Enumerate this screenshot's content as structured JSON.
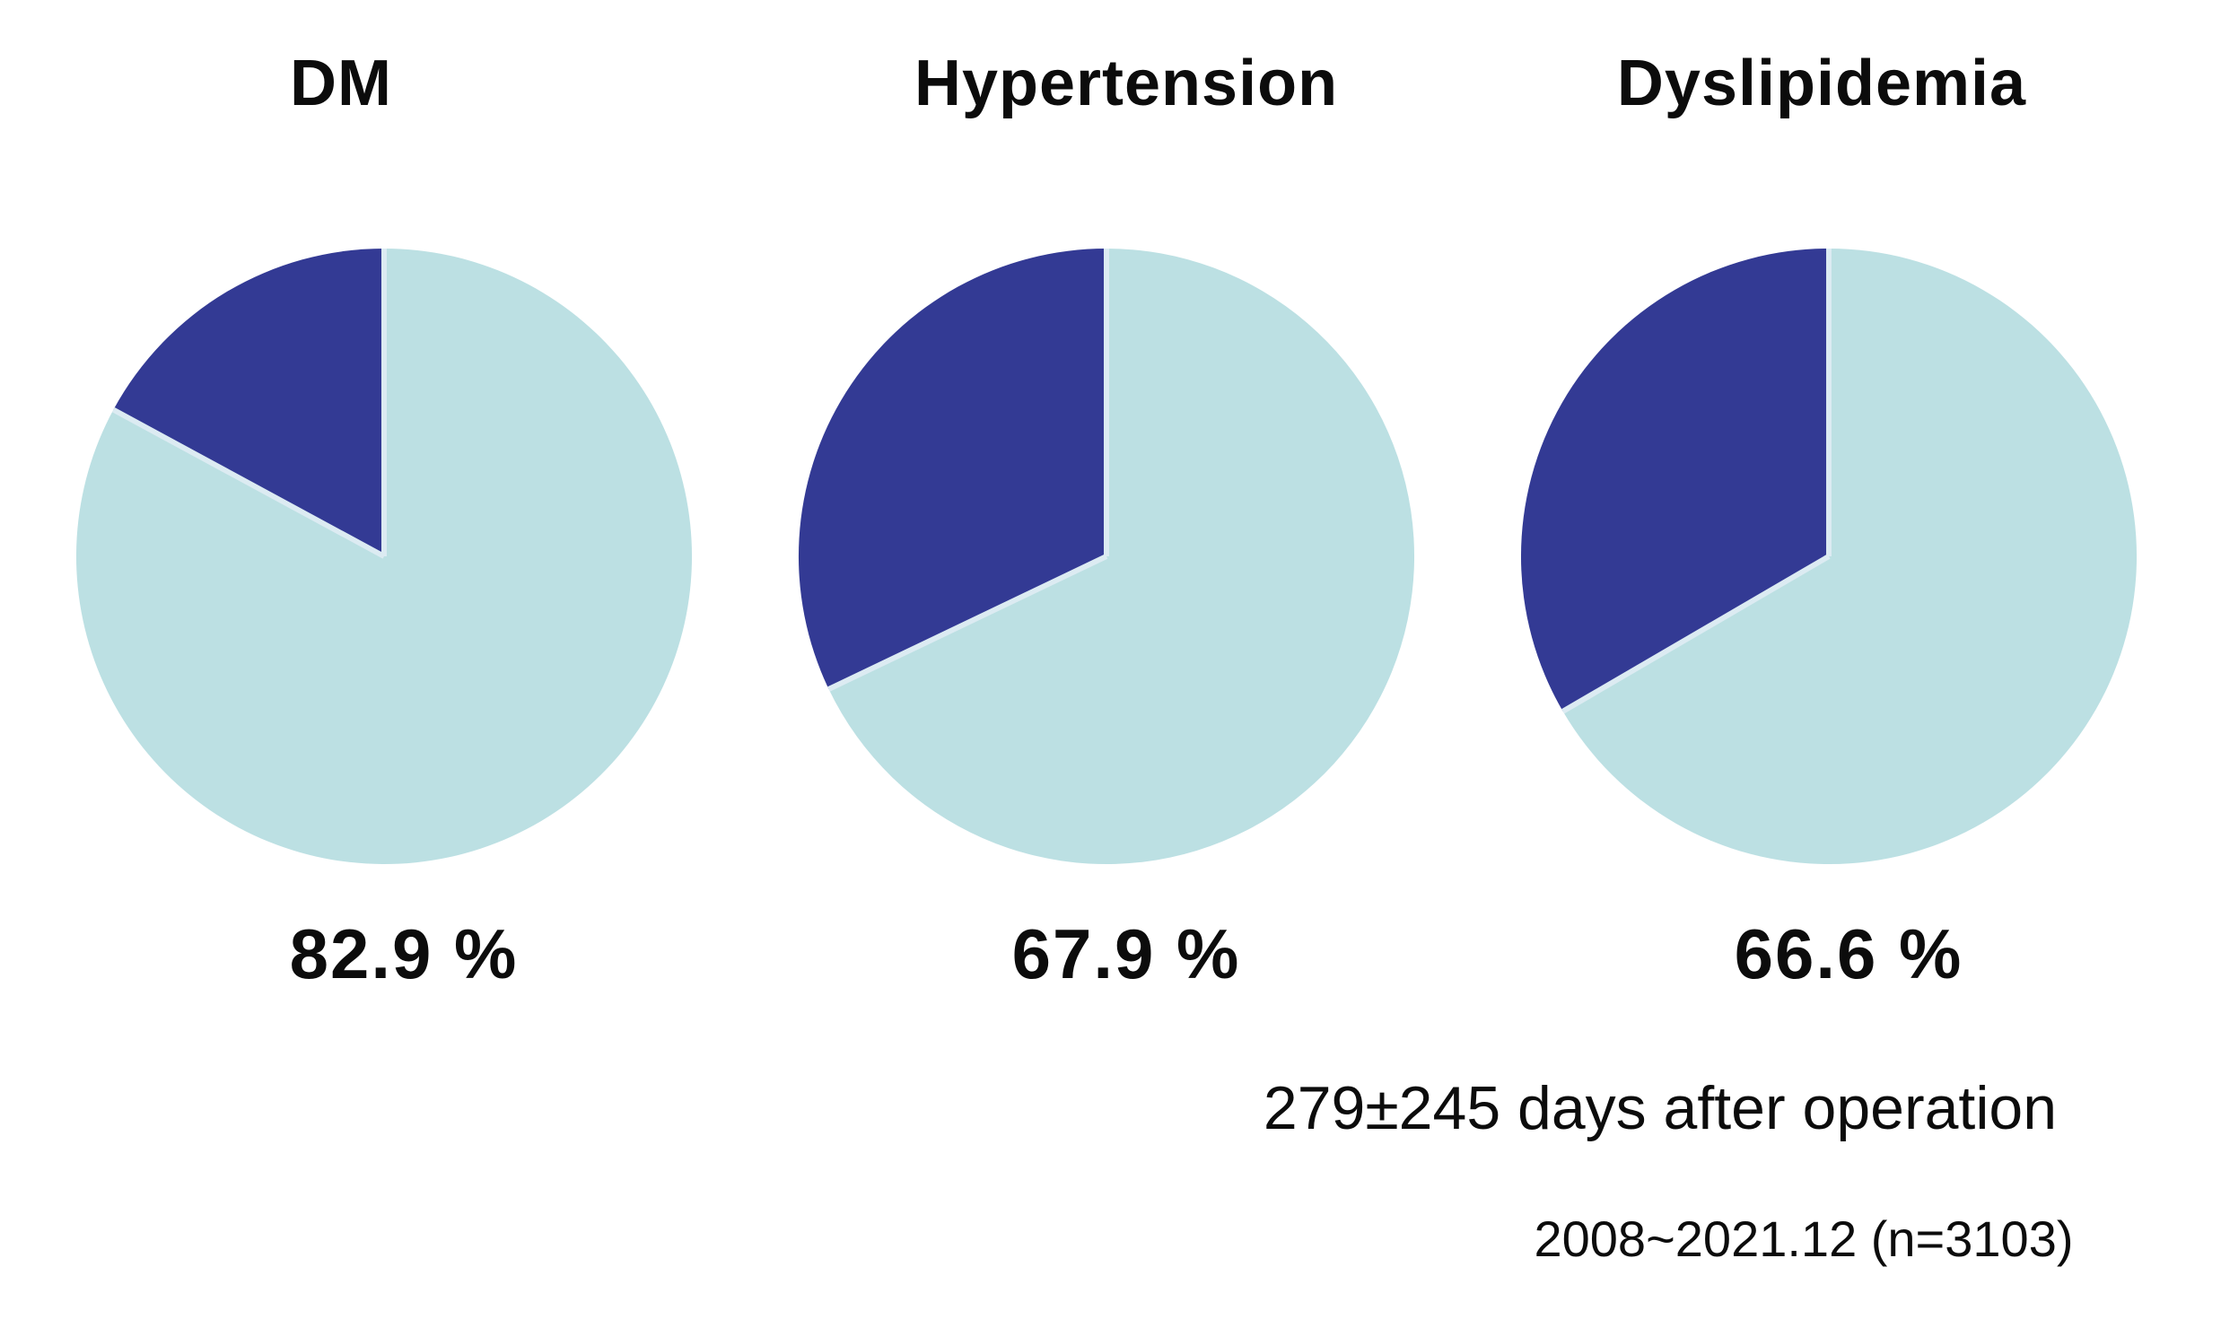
{
  "colors": {
    "light_slice": "#BCE0E3",
    "dark_slice": "#333A94",
    "separator": "#DCEBF2",
    "background": "#FFFFFF",
    "text": "#0C0C0C"
  },
  "annotations": {
    "line1": "279±245 days after operation",
    "line2": "2008~2021.12 (n=3103)"
  },
  "chart_data": [
    {
      "type": "pie",
      "title": "DM",
      "values": [
        82.9,
        17.1
      ],
      "colors": [
        "#BCE0E3",
        "#333A94"
      ],
      "label": "82.9 %",
      "start_angle_deg": 0,
      "direction": "clockwise",
      "legend": "none"
    },
    {
      "type": "pie",
      "title": "Hypertension",
      "values": [
        67.9,
        32.1
      ],
      "colors": [
        "#BCE0E3",
        "#333A94"
      ],
      "label": "67.9 %",
      "start_angle_deg": 0,
      "direction": "clockwise",
      "legend": "none"
    },
    {
      "type": "pie",
      "title": "Dyslipidemia",
      "values": [
        66.6,
        33.4
      ],
      "colors": [
        "#BCE0E3",
        "#333A94"
      ],
      "label": "66.6 %",
      "start_angle_deg": 0,
      "direction": "clockwise",
      "legend": "none"
    }
  ]
}
